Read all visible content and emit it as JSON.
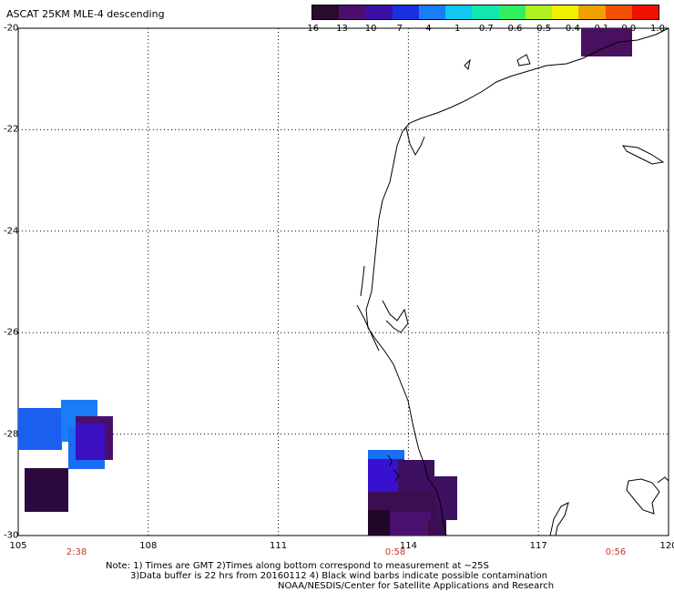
{
  "title": "ASCAT 25KM MLE-4 descending",
  "colorbar": {
    "labels": [
      "-16",
      "-13",
      "-10",
      "-7",
      "-4",
      "-1",
      "-0.7",
      "-0.6",
      "-0.5",
      "-0.4",
      "-0.1",
      "0.0",
      "1.0"
    ],
    "colors": [
      "#2a0a2e",
      "#4b0f6b",
      "#3a10a6",
      "#1a2fe0",
      "#1a7df5",
      "#10c8f0",
      "#10e8b0",
      "#30f060",
      "#b0f020",
      "#f0f000",
      "#f0a000",
      "#f05000",
      "#f01000"
    ]
  },
  "axes": {
    "lon_labels": [
      "105",
      "108",
      "111",
      "114",
      "117",
      "120"
    ],
    "lat_labels": [
      "-20",
      "-22",
      "-24",
      "-26",
      "-28",
      "-30"
    ],
    "lon_range": [
      105,
      120
    ],
    "lat_range": [
      -20,
      -30
    ],
    "grid": "dotted"
  },
  "times": [
    "2:38",
    "0:58",
    "0:56"
  ],
  "note": {
    "line1": "Note: 1) Times are GMT 2)Times along bottom correspond to measurement at ~25S",
    "line2": "3)Data buffer is 22 hrs from 20160112 4) Black wind barbs indicate possible contamination",
    "line3": "NOAA/NESDIS/Center for Satellite Applications and Research"
  },
  "colors": {
    "background": "#ffffff",
    "grid": "#000000",
    "time_label": "#c0392b"
  }
}
